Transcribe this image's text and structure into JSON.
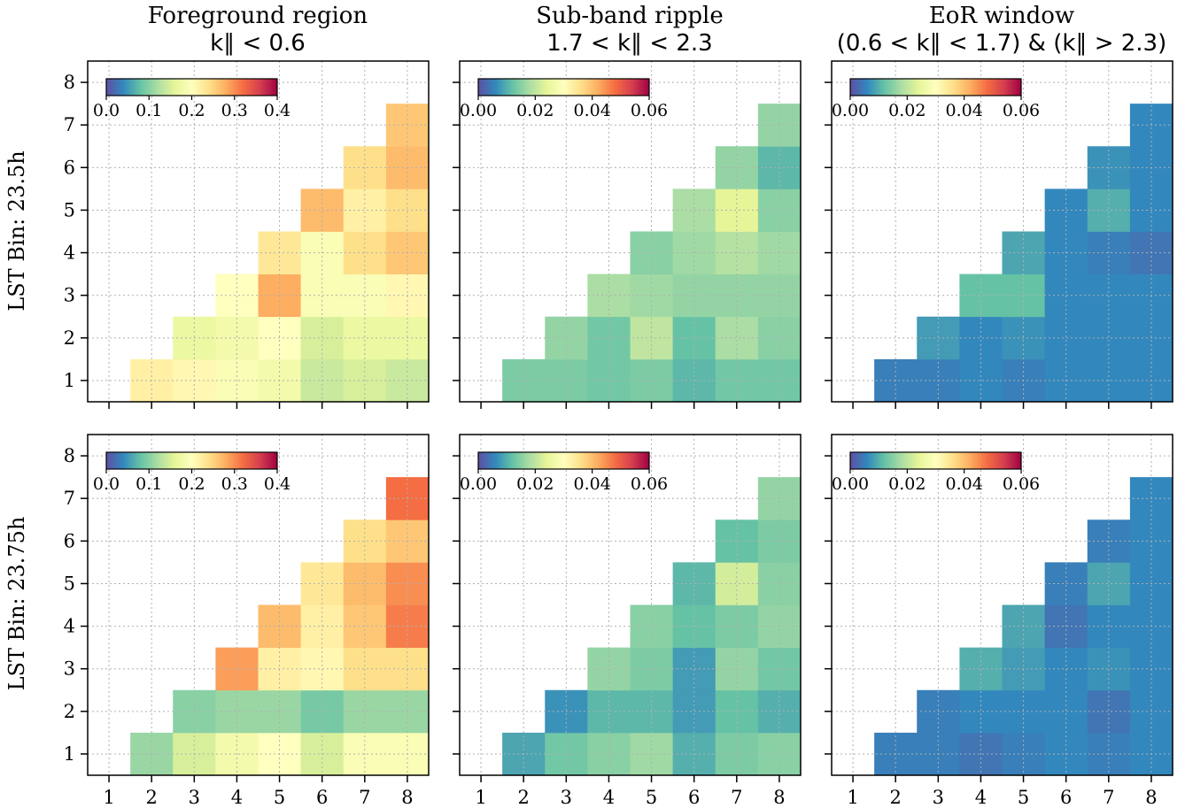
{
  "colors": {
    "frame": "#000000",
    "grid": "#b0b0b0",
    "colormap": [
      "#5e4fa2",
      "#3288bd",
      "#66c2a5",
      "#abdda4",
      "#e6f598",
      "#ffffbf",
      "#fee08b",
      "#fdae61",
      "#f46d43",
      "#d53e4f",
      "#9e0142"
    ]
  },
  "column_titles": [
    {
      "line1": "Foreground region",
      "line2": "k∥ < 0.6"
    },
    {
      "line1": "Sub-band ripple",
      "line2": "1.7 < k∥ < 2.3"
    },
    {
      "line1": "EoR window",
      "line2": "(0.6 < k∥ < 1.7) & (k∥ > 2.3)"
    }
  ],
  "row_labels": [
    "LST Bin: 23.5h",
    "LST Bin: 23.75h"
  ],
  "chart_data": [
    {
      "type": "heatmap",
      "row": 0,
      "col": 0,
      "x_ticks": [
        1,
        2,
        3,
        4,
        5,
        6,
        7,
        8
      ],
      "y_ticks": [
        1,
        2,
        3,
        4,
        5,
        6,
        7,
        8
      ],
      "xlim": [
        0.5,
        8.5
      ],
      "ylim": [
        0.5,
        8.5
      ],
      "grid": true,
      "colorbar": {
        "vmin": 0.0,
        "vmax": 0.4,
        "ticks": [
          "0.0",
          "0.1",
          "0.2",
          "0.3",
          "0.4"
        ],
        "placement": "top-left"
      },
      "values": [
        [
          null,
          0.22,
          0.21,
          0.19,
          0.18,
          0.14,
          0.15,
          0.14
        ],
        [
          null,
          null,
          0.17,
          0.18,
          0.2,
          0.15,
          0.17,
          0.17
        ],
        [
          null,
          null,
          null,
          0.2,
          0.28,
          0.19,
          0.19,
          0.21
        ],
        [
          null,
          null,
          null,
          null,
          0.23,
          0.19,
          0.24,
          0.26
        ],
        [
          null,
          null,
          null,
          null,
          null,
          0.27,
          0.22,
          0.24
        ],
        [
          null,
          null,
          null,
          null,
          null,
          null,
          0.24,
          0.27
        ],
        [
          null,
          null,
          null,
          null,
          null,
          null,
          null,
          0.26
        ]
      ]
    },
    {
      "type": "heatmap",
      "row": 0,
      "col": 1,
      "x_ticks": [
        1,
        2,
        3,
        4,
        5,
        6,
        7,
        8
      ],
      "y_ticks": [
        1,
        2,
        3,
        4,
        5,
        6,
        7,
        8
      ],
      "xlim": [
        0.5,
        8.5
      ],
      "ylim": [
        0.5,
        8.5
      ],
      "grid": true,
      "colorbar": {
        "vmin": 0.0,
        "vmax": 0.06,
        "ticks": [
          "0.00",
          "0.02",
          "0.04",
          "0.06"
        ],
        "placement": "top-left"
      },
      "values": [
        [
          null,
          0.014,
          0.014,
          0.013,
          0.014,
          0.011,
          0.013,
          0.013
        ],
        [
          null,
          null,
          0.016,
          0.013,
          0.02,
          0.012,
          0.018,
          0.015
        ],
        [
          null,
          null,
          null,
          0.018,
          0.017,
          0.016,
          0.016,
          0.016
        ],
        [
          null,
          null,
          null,
          null,
          0.015,
          0.017,
          0.019,
          0.017
        ],
        [
          null,
          null,
          null,
          null,
          null,
          0.018,
          0.024,
          0.015
        ],
        [
          null,
          null,
          null,
          null,
          null,
          null,
          0.016,
          0.011
        ],
        [
          null,
          null,
          null,
          null,
          null,
          null,
          null,
          0.016
        ]
      ]
    },
    {
      "type": "heatmap",
      "row": 0,
      "col": 2,
      "x_ticks": [
        1,
        2,
        3,
        4,
        5,
        6,
        7,
        8
      ],
      "y_ticks": [
        1,
        2,
        3,
        4,
        5,
        6,
        7,
        8
      ],
      "xlim": [
        0.5,
        8.5
      ],
      "ylim": [
        0.5,
        8.5
      ],
      "grid": true,
      "colorbar": {
        "vmin": 0.0,
        "vmax": 0.06,
        "ticks": [
          "0.00",
          "0.02",
          "0.04",
          "0.06"
        ],
        "placement": "top-left"
      },
      "values": [
        [
          null,
          0.005,
          0.005,
          0.006,
          0.005,
          0.006,
          0.006,
          0.006
        ],
        [
          null,
          null,
          0.008,
          0.006,
          0.007,
          0.006,
          0.006,
          0.006
        ],
        [
          null,
          null,
          null,
          0.012,
          0.012,
          0.006,
          0.006,
          0.006
        ],
        [
          null,
          null,
          null,
          null,
          0.009,
          0.006,
          0.005,
          0.004
        ],
        [
          null,
          null,
          null,
          null,
          null,
          0.006,
          0.01,
          0.006
        ],
        [
          null,
          null,
          null,
          null,
          null,
          null,
          0.007,
          0.006
        ],
        [
          null,
          null,
          null,
          null,
          null,
          null,
          null,
          0.006
        ]
      ]
    },
    {
      "type": "heatmap",
      "row": 1,
      "col": 0,
      "x_ticks": [
        1,
        2,
        3,
        4,
        5,
        6,
        7,
        8
      ],
      "y_ticks": [
        1,
        2,
        3,
        4,
        5,
        6,
        7,
        8
      ],
      "xlim": [
        0.5,
        8.5
      ],
      "ylim": [
        0.5,
        8.5
      ],
      "grid": true,
      "colorbar": {
        "vmin": 0.0,
        "vmax": 0.4,
        "ticks": [
          "0.0",
          "0.1",
          "0.2",
          "0.3",
          "0.4"
        ],
        "placement": "top-left"
      },
      "values": [
        [
          null,
          0.11,
          0.15,
          0.18,
          0.2,
          0.15,
          0.19,
          0.19
        ],
        [
          null,
          null,
          0.1,
          0.11,
          0.11,
          0.09,
          0.11,
          0.11
        ],
        [
          null,
          null,
          null,
          0.29,
          0.22,
          0.21,
          0.24,
          0.24
        ],
        [
          null,
          null,
          null,
          null,
          0.27,
          0.22,
          0.26,
          0.31
        ],
        [
          null,
          null,
          null,
          null,
          null,
          0.23,
          0.27,
          0.3
        ],
        [
          null,
          null,
          null,
          null,
          null,
          null,
          0.24,
          0.26
        ],
        [
          null,
          null,
          null,
          null,
          null,
          null,
          null,
          0.32
        ]
      ]
    },
    {
      "type": "heatmap",
      "row": 1,
      "col": 1,
      "x_ticks": [
        1,
        2,
        3,
        4,
        5,
        6,
        7,
        8
      ],
      "y_ticks": [
        1,
        2,
        3,
        4,
        5,
        6,
        7,
        8
      ],
      "xlim": [
        0.5,
        8.5
      ],
      "ylim": [
        0.5,
        8.5
      ],
      "grid": true,
      "colorbar": {
        "vmin": 0.0,
        "vmax": 0.06,
        "ticks": [
          "0.00",
          "0.02",
          "0.04",
          "0.06"
        ],
        "placement": "top-left"
      },
      "values": [
        [
          null,
          0.009,
          0.013,
          0.015,
          0.017,
          0.01,
          0.014,
          0.015
        ],
        [
          null,
          null,
          0.007,
          0.011,
          0.011,
          0.008,
          0.012,
          0.01
        ],
        [
          null,
          null,
          null,
          0.016,
          0.014,
          0.008,
          0.016,
          0.013
        ],
        [
          null,
          null,
          null,
          null,
          0.015,
          0.012,
          0.014,
          0.016
        ],
        [
          null,
          null,
          null,
          null,
          null,
          0.011,
          0.022,
          0.015
        ],
        [
          null,
          null,
          null,
          null,
          null,
          null,
          0.012,
          0.014
        ],
        [
          null,
          null,
          null,
          null,
          null,
          null,
          null,
          0.016
        ]
      ]
    },
    {
      "type": "heatmap",
      "row": 1,
      "col": 2,
      "x_ticks": [
        1,
        2,
        3,
        4,
        5,
        6,
        7,
        8
      ],
      "y_ticks": [
        1,
        2,
        3,
        4,
        5,
        6,
        7,
        8
      ],
      "xlim": [
        0.5,
        8.5
      ],
      "ylim": [
        0.5,
        8.5
      ],
      "grid": true,
      "colorbar": {
        "vmin": 0.0,
        "vmax": 0.06,
        "ticks": [
          "0.00",
          "0.02",
          "0.04",
          "0.06"
        ],
        "placement": "top-left"
      },
      "values": [
        [
          null,
          0.005,
          0.005,
          0.004,
          0.005,
          0.006,
          0.005,
          0.006
        ],
        [
          null,
          null,
          0.005,
          0.006,
          0.006,
          0.006,
          0.004,
          0.006
        ],
        [
          null,
          null,
          null,
          0.01,
          0.008,
          0.006,
          0.007,
          0.006
        ],
        [
          null,
          null,
          null,
          null,
          0.009,
          0.004,
          0.006,
          0.006
        ],
        [
          null,
          null,
          null,
          null,
          null,
          0.005,
          0.009,
          0.006
        ],
        [
          null,
          null,
          null,
          null,
          null,
          null,
          0.005,
          0.006
        ],
        [
          null,
          null,
          null,
          null,
          null,
          null,
          null,
          0.006
        ]
      ]
    }
  ]
}
